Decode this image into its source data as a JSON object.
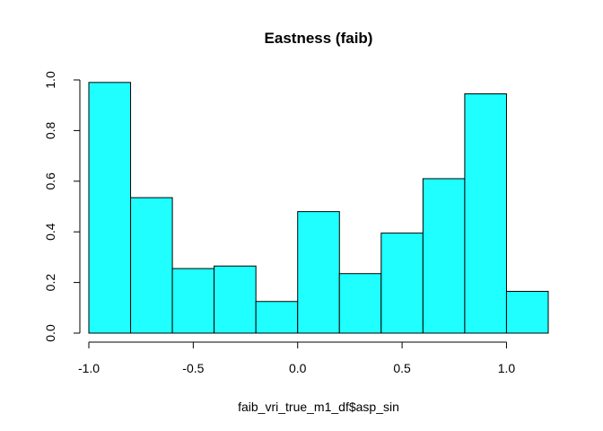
{
  "chart_data": {
    "type": "bar",
    "subtype": "histogram",
    "title": "Eastness (faib)",
    "xlabel": "faib_vri_true_m1_df$asp_sin",
    "ylabel": "",
    "bin_edges": [
      -1.0,
      -0.8,
      -0.6,
      -0.4,
      -0.2,
      0.0,
      0.2,
      0.4,
      0.6,
      0.8,
      1.0,
      1.2
    ],
    "values": [
      0.99,
      0.535,
      0.255,
      0.265,
      0.125,
      0.48,
      0.235,
      0.395,
      0.61,
      0.945,
      0.165
    ],
    "xlim": [
      -1.0,
      1.2
    ],
    "ylim": [
      0,
      1.0
    ],
    "x_ticks": [
      -1.0,
      -0.5,
      0.0,
      0.5,
      1.0
    ],
    "x_tick_labels": [
      "-1.0",
      "-0.5",
      "0.0",
      "0.5",
      "1.0"
    ],
    "y_ticks": [
      0.0,
      0.2,
      0.4,
      0.6,
      0.8,
      1.0
    ],
    "y_tick_labels": [
      "0.0",
      "0.2",
      "0.4",
      "0.6",
      "0.8",
      "1.0"
    ],
    "bar_color": "#1fffff",
    "grid": false,
    "legend": "none"
  }
}
